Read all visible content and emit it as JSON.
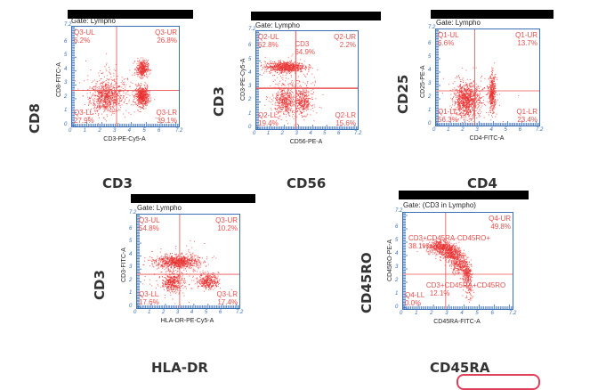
{
  "figure": {
    "pill_color": "#e0405a",
    "axis_color": "#3b6fb6",
    "dot_color": "#e8302f",
    "gate_line_color": "#e8504f"
  },
  "chart_data": [
    {
      "type": "scatter",
      "title": "Gate: Lympho",
      "xlabel": "CD3-PE-Cy5-A",
      "ylabel": "CD8-FITC-A",
      "big_xlabel": "CD3",
      "big_ylabel": "CD8",
      "xlim": [
        0,
        7.2
      ],
      "ylim": [
        0,
        7.2
      ],
      "x_ticks": [
        "0",
        "1",
        "2",
        "3",
        "4",
        "5",
        "6",
        "7.2"
      ],
      "y_ticks": [
        "0",
        "1",
        "2",
        "3",
        "4",
        "5",
        "6",
        "7.2"
      ],
      "gate": {
        "x": 3.0,
        "y": 2.6
      },
      "quadrants": [
        {
          "pos": "UL",
          "label": "Q3-UL",
          "value": "6.2%"
        },
        {
          "pos": "UR",
          "label": "Q3-UR",
          "value": "26.8%"
        },
        {
          "pos": "LL",
          "label": "Q3-LL",
          "value": "27.9%"
        },
        {
          "pos": "LR",
          "label": "Q3-LR",
          "value": "39.1%"
        }
      ],
      "clusters": [
        {
          "x": 2.3,
          "y": 2.1,
          "sx": 0.55,
          "sy": 0.55,
          "n": 700
        },
        {
          "x": 4.7,
          "y": 2.2,
          "sx": 0.22,
          "sy": 0.35,
          "n": 600
        },
        {
          "x": 4.7,
          "y": 4.2,
          "sx": 0.2,
          "sy": 0.3,
          "n": 380
        },
        {
          "x": 2.8,
          "y": 2.8,
          "sx": 1.0,
          "sy": 1.0,
          "n": 200
        }
      ]
    },
    {
      "type": "scatter",
      "title": "Gate: Lympho",
      "xlabel": "CD56-PE-A",
      "ylabel": "CD3-PE-Cy5-A",
      "big_xlabel": "CD56",
      "big_ylabel": "CD3",
      "xlim": [
        0,
        7.2
      ],
      "ylim": [
        0,
        7.2
      ],
      "x_ticks": [
        "0",
        "1",
        "2",
        "3",
        "4",
        "5",
        "6",
        "7.2"
      ],
      "y_ticks": [
        "0",
        "1",
        "2",
        "3",
        "4",
        "5",
        "6",
        "7.2"
      ],
      "gate": {
        "x": 2.8,
        "y": 3.0
      },
      "annotation": {
        "label": "CD3",
        "value": "64.9%"
      },
      "quadrants": [
        {
          "pos": "UL",
          "label": "Q2-UL",
          "value": "62.8%"
        },
        {
          "pos": "UR",
          "label": "Q2-UR",
          "value": "2.2%"
        },
        {
          "pos": "LL",
          "label": "Q2-LL",
          "value": "19.4%"
        },
        {
          "pos": "LR",
          "label": "Q2-LR",
          "value": "15.6%"
        }
      ],
      "clusters": [
        {
          "x": 2.0,
          "y": 4.6,
          "sx": 0.7,
          "sy": 0.2,
          "n": 750
        },
        {
          "x": 2.0,
          "y": 2.0,
          "sx": 0.35,
          "sy": 0.5,
          "n": 380
        },
        {
          "x": 3.3,
          "y": 2.0,
          "sx": 0.3,
          "sy": 0.45,
          "n": 320
        },
        {
          "x": 2.4,
          "y": 2.8,
          "sx": 0.9,
          "sy": 1.0,
          "n": 200
        }
      ]
    },
    {
      "type": "scatter",
      "title": "Gate: Lympho",
      "xlabel": "CD4-FITC-A",
      "ylabel": "CD25-PE-A",
      "big_xlabel": "CD4",
      "big_ylabel": "CD25",
      "xlim": [
        0,
        7.2
      ],
      "ylim": [
        0,
        7.2
      ],
      "x_ticks": [
        "0",
        "1",
        "2",
        "3",
        "4",
        "5",
        "6",
        "7.2"
      ],
      "y_ticks": [
        "0",
        "1",
        "2",
        "3",
        "4",
        "5",
        "6",
        "7.2"
      ],
      "gate": {
        "x": 2.7,
        "y": 2.6
      },
      "quadrants": [
        {
          "pos": "UL",
          "label": "Q1-UL",
          "value": "6.6%"
        },
        {
          "pos": "UR",
          "label": "Q1-UR",
          "value": "13.7%"
        },
        {
          "pos": "LL",
          "label": "Q1-LL",
          "value": "56.3%"
        },
        {
          "pos": "LR",
          "label": "Q1-LR",
          "value": "23.4%"
        }
      ],
      "clusters": [
        {
          "x": 2.1,
          "y": 1.9,
          "sx": 0.45,
          "sy": 0.6,
          "n": 900
        },
        {
          "x": 3.9,
          "y": 2.4,
          "sx": 0.12,
          "sy": 0.7,
          "n": 420
        },
        {
          "x": 2.5,
          "y": 2.2,
          "sx": 0.9,
          "sy": 0.9,
          "n": 160
        }
      ]
    },
    {
      "type": "scatter",
      "title": "Gate: Lympho",
      "xlabel": "HLA-DR-PE-Cy5-A",
      "ylabel": "CD3-FITC-A",
      "big_xlabel": "HLA-DR",
      "big_ylabel": "CD3",
      "xlim": [
        0,
        7.2
      ],
      "ylim": [
        0,
        7.2
      ],
      "x_ticks": [
        "0",
        "1",
        "2",
        "3",
        "4",
        "5",
        "6",
        "7.2"
      ],
      "y_ticks": [
        "0",
        "1",
        "2",
        "3",
        "4",
        "5",
        "6",
        "7.2"
      ],
      "gate": {
        "x": 3.0,
        "y": 2.6
      },
      "quadrants": [
        {
          "pos": "UL",
          "label": "Q3-UL",
          "value": "54.8%"
        },
        {
          "pos": "UR",
          "label": "Q3-UR",
          "value": "10.2%"
        },
        {
          "pos": "LL",
          "label": "Q3-LL",
          "value": "17.6%"
        },
        {
          "pos": "LR",
          "label": "Q3-LR",
          "value": "17.4%"
        }
      ],
      "clusters": [
        {
          "x": 2.8,
          "y": 3.6,
          "sx": 0.75,
          "sy": 0.25,
          "n": 800
        },
        {
          "x": 2.4,
          "y": 2.0,
          "sx": 0.35,
          "sy": 0.35,
          "n": 380
        },
        {
          "x": 5.0,
          "y": 2.1,
          "sx": 0.35,
          "sy": 0.3,
          "n": 360
        },
        {
          "x": 3.0,
          "y": 2.8,
          "sx": 1.2,
          "sy": 1.0,
          "n": 180
        }
      ]
    },
    {
      "type": "scatter",
      "title": "Gate: (CD3 in Lympho)",
      "xlabel": "CD45RA-FITC-A",
      "ylabel": "CD45RO-PE-A",
      "big_xlabel": "CD45RA",
      "big_ylabel": "CD45RO",
      "xlim": [
        0,
        7.2
      ],
      "ylim": [
        0,
        7.2
      ],
      "x_ticks": [
        "0",
        "1",
        "2",
        "3",
        "4",
        "5",
        "6",
        "7.2"
      ],
      "y_ticks": [
        "0",
        "1",
        "2",
        "3",
        "4",
        "5",
        "6",
        "7.2"
      ],
      "gate": {
        "x": 2.8,
        "y": 2.6
      },
      "quadrants": [
        {
          "pos": "UL",
          "label": "CD3+CD45RA-CD45RO+",
          "value": "38.1%"
        },
        {
          "pos": "UR",
          "label": "Q4-UR",
          "value": "49.8%"
        },
        {
          "pos": "LL",
          "label": "Q4-LL",
          "value": "0.0%"
        },
        {
          "pos": "LR",
          "label": "CD3+CD45RA+CD45RO",
          "value": "12.1%"
        }
      ],
      "clusters": [
        {
          "x": 2.4,
          "y": 4.7,
          "sx": 0.45,
          "sy": 0.25,
          "n": 450
        },
        {
          "x": 3.1,
          "y": 4.2,
          "sx": 0.35,
          "sy": 0.3,
          "n": 450
        },
        {
          "x": 3.7,
          "y": 3.4,
          "sx": 0.3,
          "sy": 0.35,
          "n": 320
        },
        {
          "x": 4.2,
          "y": 2.6,
          "sx": 0.15,
          "sy": 0.35,
          "n": 200
        },
        {
          "x": 4.3,
          "y": 1.6,
          "sx": 0.15,
          "sy": 0.5,
          "n": 80
        }
      ]
    }
  ]
}
